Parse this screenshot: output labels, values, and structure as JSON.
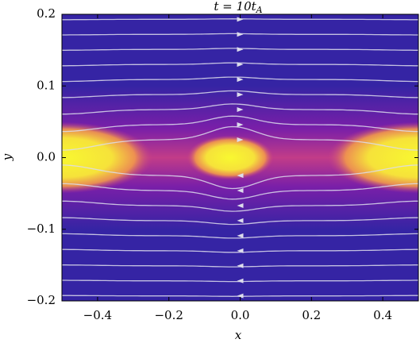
{
  "chart_data": {
    "type": "heatmap",
    "title": "t = 10t",
    "title_subscript": "A",
    "x_label": "x",
    "y_label": "y",
    "xlim": [
      -0.5,
      0.5
    ],
    "ylim": [
      -0.2,
      0.2
    ],
    "xticks": [
      {
        "value": -0.4,
        "label": "−0.4"
      },
      {
        "value": -0.2,
        "label": "−0.2"
      },
      {
        "value": 0,
        "label": "0.0"
      },
      0.2,
      0.4
    ],
    "yticks": [
      {
        "value": -0.2,
        "label": "−0.2"
      },
      {
        "value": -0.1,
        "label": "−0.1"
      },
      {
        "value": 0,
        "label": "0.0"
      },
      0.1,
      0.2
    ]
  }
}
